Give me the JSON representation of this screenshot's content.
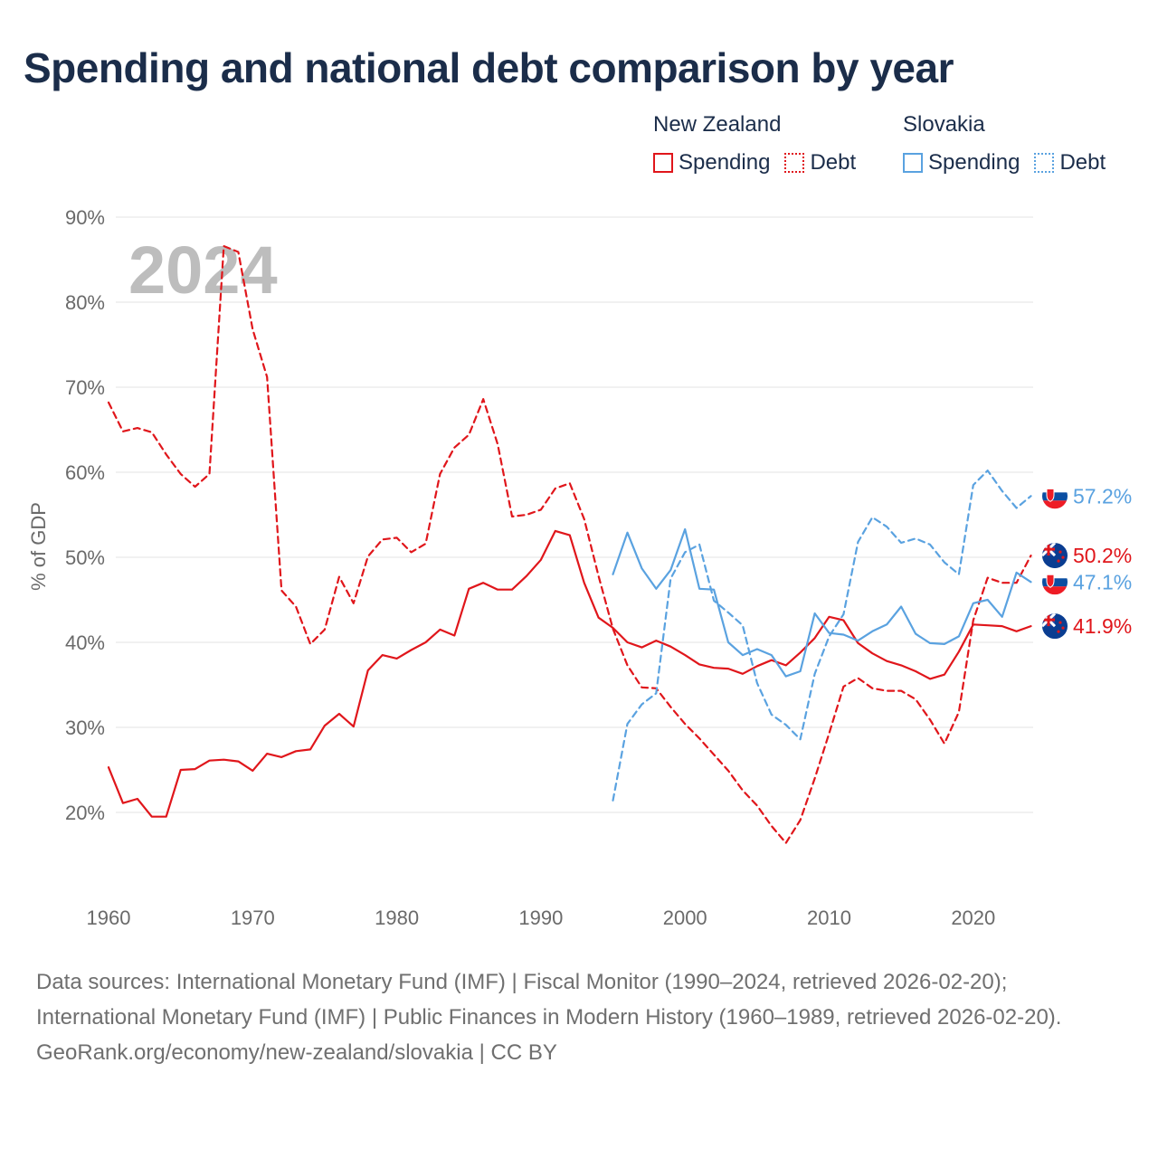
{
  "title": "Spending and national debt comparison by year",
  "legend": {
    "groups": [
      {
        "country": "New Zealand",
        "spending_label": "Spending",
        "debt_label": "Debt",
        "color": "#e0161b"
      },
      {
        "country": "Slovakia",
        "spending_label": "Spending",
        "debt_label": "Debt",
        "color": "#5aa2e0"
      }
    ]
  },
  "footer": {
    "sources": "Data sources: International Monetary Fund (IMF) | Fiscal Monitor (1990–2024, retrieved 2026-02-20); International Monetary Fund (IMF) | Public Finances in Modern History (1960–1989, retrieved 2026-02-20).",
    "attribution": "GeoRank.org/economy/new-zealand/slovakia | CC BY"
  },
  "chart_data": {
    "type": "line",
    "title": "Spending and national debt comparison by year",
    "year_label": "2024",
    "ylabel": "% of GDP",
    "xlabel": "",
    "xlim": [
      1958,
      2027
    ],
    "ylim": [
      10,
      90
    ],
    "x_ticks": [
      1960,
      1970,
      1980,
      1990,
      2000,
      2010,
      2020
    ],
    "y_ticks": [
      20,
      30,
      40,
      50,
      60,
      70,
      80,
      90
    ],
    "y_tick_labels": [
      "20%",
      "30%",
      "40%",
      "50%",
      "60%",
      "70%",
      "80%",
      "90%"
    ],
    "grid": true,
    "series": [
      {
        "name": "New Zealand Debt",
        "country": "New Zealand",
        "kind": "Debt",
        "color": "#e0161b",
        "dashed": true,
        "start_year": 1960,
        "end_label": "50.2%",
        "values": [
          68.2,
          64.8,
          65.2,
          64.7,
          62.1,
          59.8,
          58.3,
          59.8,
          86.6,
          85.9,
          76.8,
          71.2,
          46.1,
          44.2,
          39.8,
          41.5,
          47.7,
          44.6,
          50.1,
          52.1,
          52.3,
          50.6,
          51.6,
          59.8,
          62.9,
          64.4,
          68.6,
          63.3,
          54.8,
          55.0,
          55.6,
          58.1,
          58.7,
          54.5,
          47.8,
          41.6,
          37.3,
          34.7,
          34.6,
          32.4,
          30.4,
          28.7,
          26.8,
          24.9,
          22.6,
          20.8,
          18.4,
          16.4,
          19.1,
          24.0,
          29.3,
          34.8,
          35.8,
          34.6,
          34.3,
          34.3,
          33.3,
          30.9,
          28.1,
          31.8,
          42.6,
          47.6,
          47.0,
          47.0,
          50.2
        ]
      },
      {
        "name": "New Zealand Spending",
        "country": "New Zealand",
        "kind": "Spending",
        "color": "#e0161b",
        "dashed": false,
        "start_year": 1960,
        "end_label": "41.9%",
        "values": [
          25.3,
          21.1,
          21.6,
          19.5,
          19.5,
          25.0,
          25.1,
          26.1,
          26.2,
          26.0,
          24.9,
          26.9,
          26.5,
          27.2,
          27.4,
          30.2,
          31.6,
          30.1,
          36.7,
          38.5,
          38.1,
          39.1,
          40.0,
          41.5,
          40.8,
          46.3,
          47.0,
          46.2,
          46.2,
          47.8,
          49.7,
          53.1,
          52.6,
          47.0,
          42.9,
          41.7,
          40.0,
          39.4,
          40.2,
          39.5,
          38.5,
          37.4,
          37.0,
          36.9,
          36.3,
          37.2,
          37.9,
          37.3,
          38.8,
          40.5,
          43.0,
          42.6,
          39.9,
          38.7,
          37.8,
          37.3,
          36.6,
          35.7,
          36.2,
          38.9,
          42.1,
          42.0,
          41.9,
          41.3,
          41.9
        ]
      },
      {
        "name": "Slovakia Debt",
        "country": "Slovakia",
        "kind": "Debt",
        "color": "#5aa2e0",
        "dashed": true,
        "start_year": 1995,
        "end_label": "57.2%",
        "values": [
          21.4,
          30.4,
          32.7,
          34.0,
          47.5,
          50.6,
          51.5,
          44.9,
          43.5,
          42.0,
          35.2,
          31.5,
          30.3,
          28.6,
          36.3,
          40.7,
          43.3,
          51.8,
          54.7,
          53.6,
          51.7,
          52.2,
          51.5,
          49.4,
          48.0,
          58.5,
          60.2,
          57.8,
          55.8,
          57.2
        ]
      },
      {
        "name": "Slovakia Spending",
        "country": "Slovakia",
        "kind": "Spending",
        "color": "#5aa2e0",
        "dashed": false,
        "start_year": 1995,
        "end_label": "47.1%",
        "values": [
          48.0,
          52.9,
          48.7,
          46.3,
          48.5,
          53.3,
          46.3,
          46.2,
          40.0,
          38.5,
          39.2,
          38.5,
          36.0,
          36.6,
          43.4,
          41.1,
          40.9,
          40.2,
          41.3,
          42.1,
          44.2,
          41.0,
          39.9,
          39.8,
          40.7,
          44.6,
          45.0,
          43.0,
          48.2,
          47.1
        ]
      }
    ]
  }
}
